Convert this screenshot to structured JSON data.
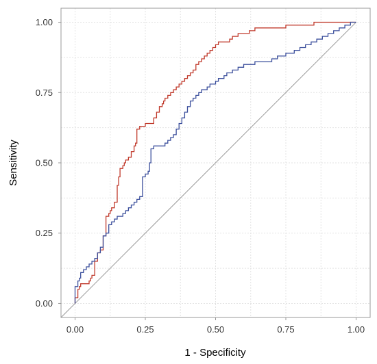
{
  "chart_data": {
    "type": "line",
    "title": "",
    "xlabel": "1 - Specificity",
    "ylabel": "Sensitivity",
    "xlim": [
      -0.05,
      1.05
    ],
    "ylim": [
      -0.05,
      1.05
    ],
    "x_ticks": [
      0,
      0.25,
      0.5,
      0.75,
      1
    ],
    "y_ticks": [
      0,
      0.25,
      0.5,
      0.75,
      1
    ],
    "x_tick_labels": [
      "0.00",
      "0.25",
      "0.50",
      "0.75",
      "1.00"
    ],
    "y_tick_labels": [
      "0.00",
      "0.25",
      "0.50",
      "0.75",
      "1.00"
    ],
    "grid": true,
    "legend": "none",
    "reference_line": {
      "x": [
        -0.05,
        1.0
      ],
      "y": [
        -0.05,
        1.0
      ],
      "color": "#999999"
    },
    "series": [
      {
        "color": "#c0392b",
        "x": [
          0.0,
          0.01,
          0.01,
          0.015,
          0.02,
          0.025,
          0.03,
          0.05,
          0.055,
          0.06,
          0.07,
          0.08,
          0.09,
          0.1,
          0.11,
          0.12,
          0.125,
          0.13,
          0.14,
          0.15,
          0.155,
          0.16,
          0.17,
          0.175,
          0.18,
          0.19,
          0.2,
          0.21,
          0.215,
          0.22,
          0.23,
          0.24,
          0.25,
          0.28,
          0.29,
          0.3,
          0.31,
          0.315,
          0.32,
          0.33,
          0.34,
          0.35,
          0.36,
          0.37,
          0.38,
          0.39,
          0.4,
          0.41,
          0.42,
          0.43,
          0.44,
          0.45,
          0.46,
          0.47,
          0.48,
          0.49,
          0.5,
          0.51,
          0.52,
          0.53,
          0.54,
          0.55,
          0.56,
          0.57,
          0.58,
          0.6,
          0.62,
          0.63,
          0.64,
          0.66,
          0.68,
          0.7,
          0.72,
          0.75,
          0.78,
          0.8,
          0.82,
          0.85,
          0.88,
          0.9,
          0.92,
          0.95,
          0.97,
          1.0
        ],
        "y": [
          0.0,
          0.02,
          0.04,
          0.05,
          0.06,
          0.07,
          0.07,
          0.07,
          0.08,
          0.09,
          0.1,
          0.15,
          0.18,
          0.19,
          0.24,
          0.31,
          0.32,
          0.33,
          0.34,
          0.36,
          0.42,
          0.45,
          0.48,
          0.49,
          0.5,
          0.51,
          0.52,
          0.54,
          0.56,
          0.57,
          0.62,
          0.63,
          0.63,
          0.64,
          0.66,
          0.68,
          0.7,
          0.71,
          0.72,
          0.73,
          0.74,
          0.75,
          0.76,
          0.77,
          0.78,
          0.79,
          0.8,
          0.81,
          0.82,
          0.83,
          0.85,
          0.86,
          0.87,
          0.88,
          0.89,
          0.9,
          0.91,
          0.92,
          0.93,
          0.93,
          0.93,
          0.93,
          0.94,
          0.95,
          0.95,
          0.96,
          0.96,
          0.97,
          0.97,
          0.98,
          0.98,
          0.98,
          0.98,
          0.98,
          0.99,
          0.99,
          0.99,
          0.99,
          1.0,
          1.0,
          1.0,
          1.0,
          1.0,
          1.0
        ]
      },
      {
        "color": "#3b4f9c",
        "x": [
          0.0,
          0.01,
          0.015,
          0.02,
          0.03,
          0.04,
          0.05,
          0.06,
          0.07,
          0.08,
          0.09,
          0.1,
          0.11,
          0.12,
          0.13,
          0.14,
          0.15,
          0.16,
          0.17,
          0.18,
          0.19,
          0.2,
          0.21,
          0.22,
          0.23,
          0.24,
          0.25,
          0.26,
          0.265,
          0.27,
          0.28,
          0.29,
          0.3,
          0.31,
          0.32,
          0.33,
          0.34,
          0.35,
          0.36,
          0.37,
          0.38,
          0.39,
          0.4,
          0.41,
          0.42,
          0.43,
          0.44,
          0.45,
          0.46,
          0.47,
          0.48,
          0.49,
          0.5,
          0.51,
          0.52,
          0.53,
          0.54,
          0.55,
          0.56,
          0.57,
          0.58,
          0.6,
          0.62,
          0.64,
          0.66,
          0.68,
          0.7,
          0.72,
          0.75,
          0.78,
          0.8,
          0.82,
          0.84,
          0.86,
          0.88,
          0.9,
          0.92,
          0.94,
          0.96,
          0.98,
          1.0
        ],
        "y": [
          0.0,
          0.06,
          0.08,
          0.09,
          0.11,
          0.12,
          0.13,
          0.14,
          0.15,
          0.16,
          0.18,
          0.2,
          0.24,
          0.25,
          0.28,
          0.29,
          0.3,
          0.31,
          0.31,
          0.32,
          0.33,
          0.34,
          0.35,
          0.36,
          0.37,
          0.38,
          0.45,
          0.46,
          0.47,
          0.5,
          0.55,
          0.56,
          0.56,
          0.56,
          0.56,
          0.57,
          0.58,
          0.59,
          0.6,
          0.62,
          0.64,
          0.66,
          0.68,
          0.7,
          0.72,
          0.73,
          0.74,
          0.75,
          0.76,
          0.76,
          0.77,
          0.78,
          0.78,
          0.79,
          0.8,
          0.8,
          0.81,
          0.82,
          0.82,
          0.83,
          0.83,
          0.84,
          0.85,
          0.85,
          0.86,
          0.86,
          0.86,
          0.87,
          0.88,
          0.89,
          0.9,
          0.91,
          0.92,
          0.93,
          0.94,
          0.95,
          0.96,
          0.97,
          0.98,
          0.99,
          1.0
        ]
      }
    ]
  }
}
